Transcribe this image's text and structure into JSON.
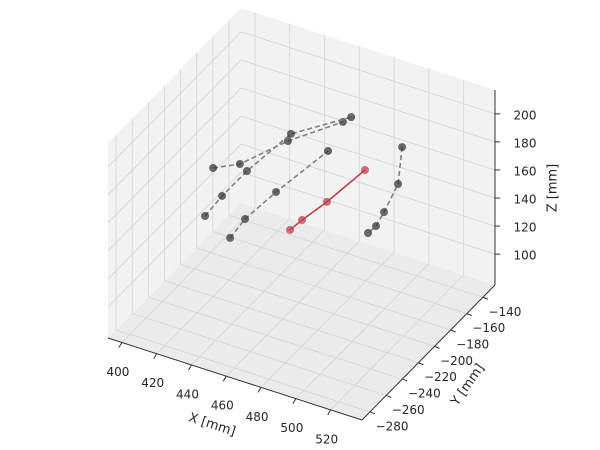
{
  "chart_data": {
    "type": "line3d",
    "xlabel": "X [mm]",
    "ylabel": "Y [mm]",
    "zlabel": "Z [mm]",
    "xlim": [
      392,
      538
    ],
    "ylim": [
      -290,
      -125
    ],
    "zlim": [
      78,
      217
    ],
    "xticks": [
      400,
      420,
      440,
      460,
      480,
      500,
      520
    ],
    "yticks": [
      {
        "value": -280,
        "label": "−280"
      },
      {
        "value": -260,
        "label": "−260"
      },
      {
        "value": -240,
        "label": "−240"
      },
      {
        "value": -220,
        "label": "−220"
      },
      {
        "value": -200,
        "label": "−200"
      },
      {
        "value": -180,
        "label": "−180"
      },
      {
        "value": -160,
        "label": "−160"
      },
      {
        "value": -140,
        "label": "−140"
      }
    ],
    "zticks": [
      100,
      120,
      140,
      160,
      180,
      200
    ],
    "grid": true,
    "series": [
      {
        "color": "#808080",
        "marker_color": "#3a3a3a",
        "linestyle": "dashed",
        "x": [
          398.9,
          414.3,
          441.9,
          473.5
        ],
        "y": [
          -174.5,
          -174.5,
          -174.5,
          -174.5
        ],
        "z": [
          134.6,
          143.6,
          171.0,
          197.3
        ]
      },
      {
        "color": "#808080",
        "marker_color": "#3a3a3a",
        "linestyle": "dashed",
        "x": [
          401.9,
          411.7,
          426.0,
          451.3,
          485.9
        ],
        "y": [
          -191,
          -191,
          -191,
          -191,
          -191
        ],
        "z": [
          111.2,
          129.4,
          152.9,
          189.5,
          215.3
        ]
      },
      {
        "color": "#808080",
        "marker_color": "#3a3a3a",
        "linestyle": "dashed",
        "x": [
          431.6,
          440.2,
          458.0,
          487.9
        ],
        "y": [
          -224,
          -224,
          -224,
          -224
        ],
        "z": [
          126.7,
          143.6,
          170.0,
          211.2
        ]
      },
      {
        "color": "#808080",
        "marker_color": "#3a3a3a",
        "linestyle": "dashed",
        "x": [
          499.9,
          497.6,
          489.5,
          484.9,
          480.3
        ],
        "y": [
          -158,
          -158,
          -158,
          -158,
          -158
        ],
        "z": [
          180.3,
          153.1,
          129.8,
          118.0,
          111.2
        ]
      },
      {
        "color": "#c0404a",
        "marker_color": "#c0404a",
        "linestyle": "solid",
        "x": [
          458.4,
          465.3,
          479.6,
          501.5
        ],
        "y": [
          -207.5,
          -207.5,
          -207.5,
          -207.5
        ],
        "z": [
          133.5,
          143.3,
          162.0,
          193.5
        ]
      }
    ]
  }
}
